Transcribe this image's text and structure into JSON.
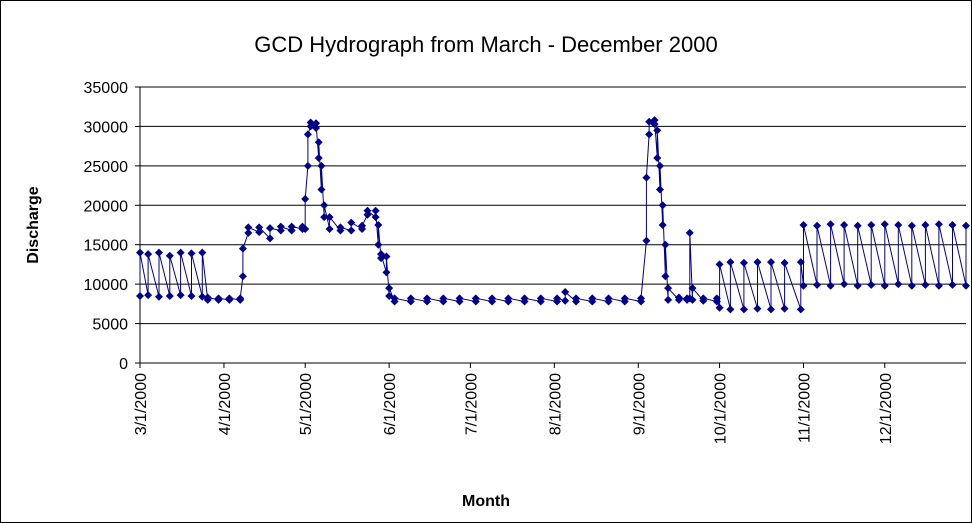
{
  "chart_data": {
    "type": "line",
    "title": "GCD Hydrograph from March - December 2000",
    "x_label": "Month",
    "y_label": "Discharge",
    "color": "#00008b",
    "grid": true,
    "ylim": [
      0,
      35000
    ],
    "yticks": [
      0,
      5000,
      10000,
      15000,
      20000,
      25000,
      30000,
      35000
    ],
    "xlim": [
      "3/1/2000",
      "12/31/2000"
    ],
    "xticks": [
      "3/1/2000",
      "4/1/2000",
      "5/1/2000",
      "6/1/2000",
      "7/1/2000",
      "8/1/2000",
      "9/1/2000",
      "10/1/2000",
      "11/1/2000",
      "12/1/2000"
    ],
    "x": [
      "3/1/2000",
      "3/1/2000",
      "3/4/2000",
      "3/4/2000",
      "3/8/2000",
      "3/8/2000",
      "3/12/2000",
      "3/12/2000",
      "3/16/2000",
      "3/16/2000",
      "3/20/2000",
      "3/20/2000",
      "3/24/2000",
      "3/24/2000",
      "3/26/2000",
      "3/26/2000",
      "3/30/2000",
      "3/30/2000",
      "4/3/2000",
      "4/3/2000",
      "4/7/2000",
      "4/7/2000",
      "4/8/2000",
      "4/8/2000",
      "4/10/2000",
      "4/10/2000",
      "4/14/2000",
      "4/14/2000",
      "4/18/2000",
      "4/18/2000",
      "4/22/2000",
      "4/22/2000",
      "4/26/2000",
      "4/26/2000",
      "4/30/2000",
      "4/30/2000",
      "5/1/2000",
      "5/1/2000",
      "5/2/2000",
      "5/2/2000",
      "5/3/2000",
      "5/3/2000",
      "5/5/2000",
      "5/5/2000",
      "5/6/2000",
      "5/6/2000",
      "5/7/2000",
      "5/7/2000",
      "5/8/2000",
      "5/8/2000",
      "5/10/2000",
      "5/10/2000",
      "5/14/2000",
      "5/14/2000",
      "5/18/2000",
      "5/18/2000",
      "5/22/2000",
      "5/22/2000",
      "5/24/2000",
      "5/24/2000",
      "5/27/2000",
      "5/27/2000",
      "5/28/2000",
      "5/28/2000",
      "5/29/2000",
      "5/29/2000",
      "5/31/2000",
      "5/31/2000",
      "6/1/2000",
      "6/1/2000",
      "6/3/2000",
      "6/3/2000",
      "6/9/2000",
      "6/9/2000",
      "6/15/2000",
      "6/15/2000",
      "6/21/2000",
      "6/21/2000",
      "6/27/2000",
      "6/27/2000",
      "7/3/2000",
      "7/3/2000",
      "7/9/2000",
      "7/9/2000",
      "7/15/2000",
      "7/15/2000",
      "7/21/2000",
      "7/21/2000",
      "7/27/2000",
      "7/27/2000",
      "8/2/2000",
      "8/2/2000",
      "8/5/2000",
      "8/5/2000",
      "8/9/2000",
      "8/9/2000",
      "8/15/2000",
      "8/15/2000",
      "8/21/2000",
      "8/21/2000",
      "8/27/2000",
      "8/27/2000",
      "9/2/2000",
      "9/2/2000",
      "9/4/2000",
      "9/4/2000",
      "9/5/2000",
      "9/5/2000",
      "9/7/2000",
      "9/7/2000",
      "9/8/2000",
      "9/8/2000",
      "9/9/2000",
      "9/9/2000",
      "9/10/2000",
      "9/10/2000",
      "9/11/2000",
      "9/11/2000",
      "9/12/2000",
      "9/12/2000",
      "9/16/2000",
      "9/16/2000",
      "9/19/2000",
      "9/19/2000",
      "9/20/2000",
      "9/20/2000",
      "9/21/2000",
      "9/21/2000",
      "9/25/2000",
      "9/25/2000",
      "9/30/2000",
      "9/30/2000",
      "10/1/2000",
      "10/1/2000",
      "10/5/2000",
      "10/5/2000",
      "10/10/2000",
      "10/10/2000",
      "10/15/2000",
      "10/15/2000",
      "10/20/2000",
      "10/20/2000",
      "10/25/2000",
      "10/25/2000",
      "10/31/2000",
      "10/31/2000",
      "11/1/2000",
      "11/1/2000",
      "11/6/2000",
      "11/6/2000",
      "11/11/2000",
      "11/11/2000",
      "11/16/2000",
      "11/16/2000",
      "11/21/2000",
      "11/21/2000",
      "11/26/2000",
      "11/26/2000",
      "12/1/2000",
      "12/1/2000",
      "12/6/2000",
      "12/6/2000",
      "12/11/2000",
      "12/11/2000",
      "12/16/2000",
      "12/16/2000",
      "12/21/2000",
      "12/21/2000",
      "12/26/2000",
      "12/26/2000",
      "12/31/2000",
      "12/31/2000"
    ],
    "values": [
      8500,
      14000,
      8600,
      13800,
      8400,
      14000,
      8500,
      13600,
      8600,
      14000,
      8500,
      13900,
      8400,
      14000,
      8000,
      8300,
      8000,
      8200,
      8000,
      8200,
      8000,
      8200,
      11000,
      14500,
      16500,
      17200,
      16600,
      17200,
      15800,
      17100,
      16800,
      17300,
      16800,
      17300,
      17000,
      17300,
      17000,
      20800,
      25000,
      29000,
      30000,
      30500,
      29800,
      30400,
      26000,
      28000,
      22000,
      25000,
      18500,
      20000,
      17000,
      18500,
      16800,
      17200,
      16800,
      17800,
      17000,
      17400,
      18800,
      19300,
      18500,
      19300,
      15000,
      17500,
      13300,
      13800,
      11500,
      13500,
      8500,
      9500,
      7800,
      8200,
      7800,
      8200,
      7800,
      8200,
      7800,
      8200,
      7800,
      8200,
      7800,
      8200,
      7800,
      8200,
      7800,
      8200,
      7800,
      8200,
      7800,
      8200,
      7800,
      8200,
      7900,
      9000,
      7800,
      8200,
      7800,
      8200,
      7800,
      8200,
      7800,
      8200,
      7800,
      8200,
      15500,
      23500,
      29000,
      30600,
      30300,
      30800,
      26000,
      29500,
      22000,
      25000,
      17500,
      20000,
      11000,
      15000,
      8000,
      9500,
      8000,
      8300,
      8000,
      8200,
      8200,
      16500,
      8000,
      9500,
      7900,
      8200,
      7800,
      8200,
      7000,
      12500,
      6800,
      12800,
      6800,
      12700,
      6900,
      12800,
      6800,
      12800,
      6900,
      12700,
      6800,
      12800,
      9800,
      17500,
      9900,
      17400,
      9800,
      17600,
      10000,
      17500,
      9800,
      17400,
      9900,
      17500,
      9800,
      17600,
      10000,
      17500,
      9800,
      17400,
      9900,
      17500,
      9800,
      17600,
      9900,
      17500,
      9800,
      17400
    ]
  }
}
